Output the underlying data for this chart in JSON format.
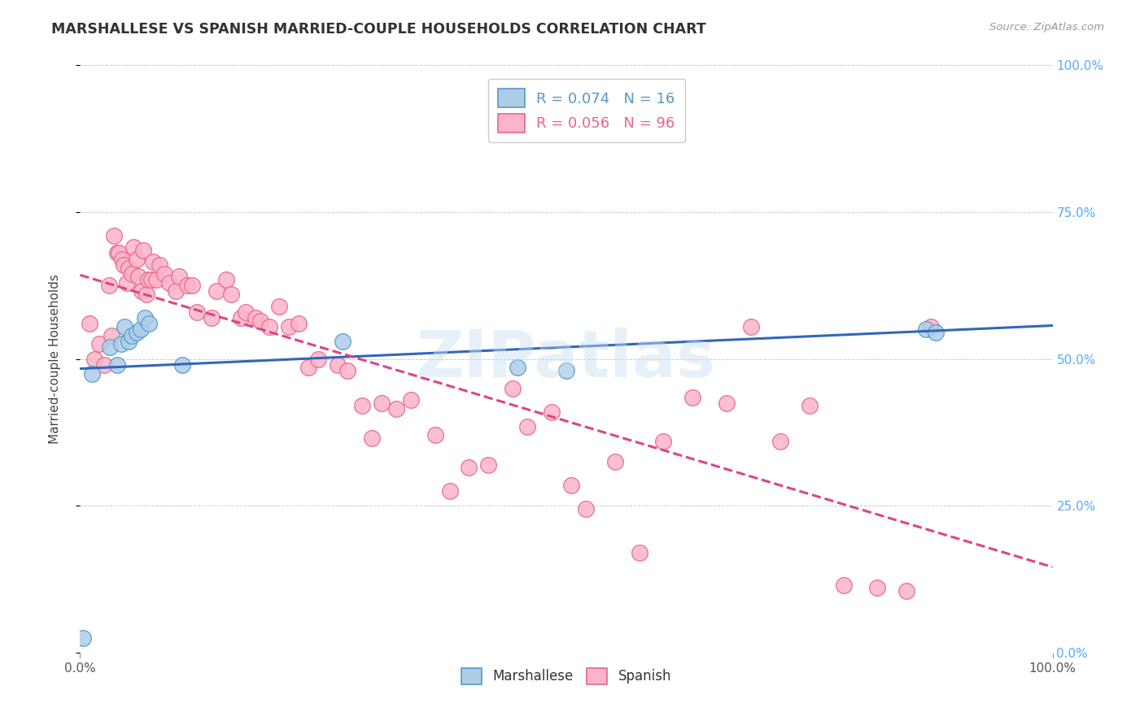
{
  "title": "MARSHALLESE VS SPANISH MARRIED-COUPLE HOUSEHOLDS CORRELATION CHART",
  "source": "Source: ZipAtlas.com",
  "ylabel": "Married-couple Households",
  "yticks_labels": [
    "0.0%",
    "25.0%",
    "50.0%",
    "75.0%",
    "100.0%"
  ],
  "ytick_vals": [
    0,
    25,
    50,
    75,
    100
  ],
  "marshallese_color": "#aecde8",
  "spanish_color": "#fbb4c9",
  "marshallese_edge": "#5599cc",
  "spanish_edge": "#e8668a",
  "trendline_marshallese_color": "#3366bb",
  "trendline_spanish_color": "#dd4488",
  "watermark": "ZIPatlas",
  "marshallese_x": [
    0.3,
    1.2,
    3.1,
    3.8,
    4.2,
    4.6,
    5.0,
    5.3,
    5.8,
    6.2,
    6.7,
    7.1,
    10.5,
    27.0,
    45.0,
    50.0,
    87.0,
    88.0
  ],
  "marshallese_y": [
    2.5,
    47.5,
    52.0,
    49.0,
    52.5,
    55.5,
    53.0,
    54.0,
    54.5,
    55.0,
    57.0,
    56.0,
    49.0,
    53.0,
    48.5,
    48.0,
    55.0,
    54.5
  ],
  "spanish_x": [
    1.0,
    1.5,
    2.0,
    2.5,
    3.0,
    3.2,
    3.5,
    3.8,
    4.0,
    4.3,
    4.5,
    4.8,
    5.0,
    5.3,
    5.5,
    5.8,
    6.0,
    6.3,
    6.5,
    6.8,
    7.0,
    7.3,
    7.5,
    7.8,
    8.2,
    8.7,
    9.2,
    9.8,
    10.2,
    11.0,
    11.5,
    12.0,
    13.5,
    14.0,
    15.0,
    15.5,
    16.5,
    17.0,
    18.0,
    18.5,
    19.5,
    20.5,
    21.5,
    22.5,
    23.5,
    24.5,
    26.5,
    27.5,
    29.0,
    30.0,
    31.0,
    32.5,
    34.0,
    36.5,
    38.0,
    40.0,
    42.0,
    44.5,
    46.0,
    48.5,
    50.5,
    52.0,
    55.0,
    57.5,
    60.0,
    63.0,
    66.5,
    69.0,
    72.0,
    75.0,
    78.5,
    82.0,
    85.0,
    87.5
  ],
  "spanish_y": [
    56.0,
    50.0,
    52.5,
    49.0,
    62.5,
    54.0,
    71.0,
    68.0,
    68.0,
    67.0,
    66.0,
    63.0,
    65.5,
    64.5,
    69.0,
    67.0,
    64.0,
    61.5,
    68.5,
    61.0,
    63.5,
    63.5,
    66.5,
    63.5,
    66.0,
    64.5,
    63.0,
    61.5,
    64.0,
    62.5,
    62.5,
    58.0,
    57.0,
    61.5,
    63.5,
    61.0,
    57.0,
    58.0,
    57.0,
    56.5,
    55.5,
    59.0,
    55.5,
    56.0,
    48.5,
    50.0,
    49.0,
    48.0,
    42.0,
    36.5,
    42.5,
    41.5,
    43.0,
    37.0,
    27.5,
    31.5,
    32.0,
    45.0,
    38.5,
    41.0,
    28.5,
    24.5,
    32.5,
    17.0,
    36.0,
    43.5,
    42.5,
    55.5,
    36.0,
    42.0,
    11.5,
    11.0,
    10.5,
    55.5
  ]
}
